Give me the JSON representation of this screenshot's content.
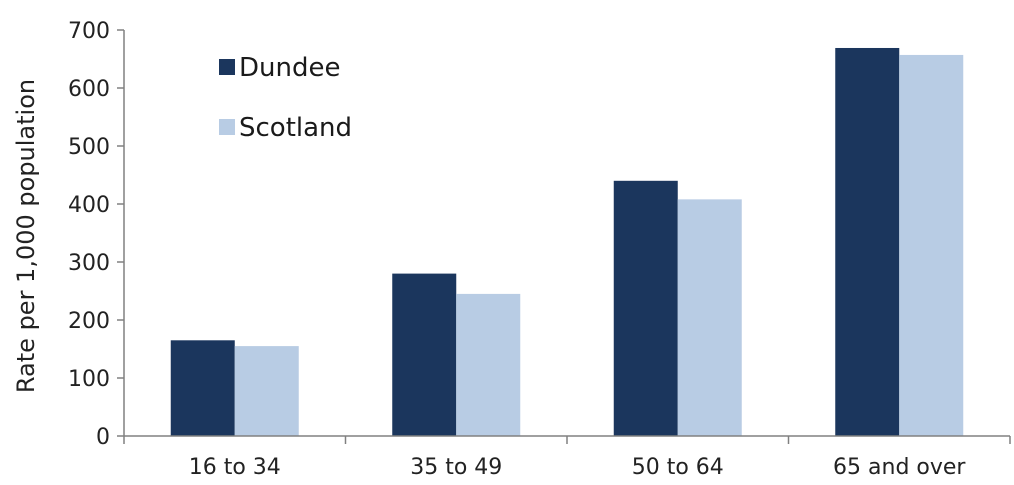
{
  "chart_data": {
    "type": "bar",
    "title": "",
    "xlabel": "",
    "ylabel": "Rate per 1,000 population",
    "categories": [
      "16 to 34",
      "35 to 49",
      "50 to 64",
      "65 and over"
    ],
    "series": [
      {
        "name": "Dundee",
        "color": "#1b365d",
        "values": [
          165,
          280,
          440,
          669
        ]
      },
      {
        "name": "Scotland",
        "color": "#b8cce4",
        "values": [
          155,
          245,
          408,
          657
        ]
      }
    ],
    "ylim": [
      0,
      700
    ],
    "yticks": [
      "0",
      "100",
      "200",
      "300",
      "400",
      "500",
      "600",
      "700"
    ],
    "legend_position": "top-left",
    "grid": false
  }
}
